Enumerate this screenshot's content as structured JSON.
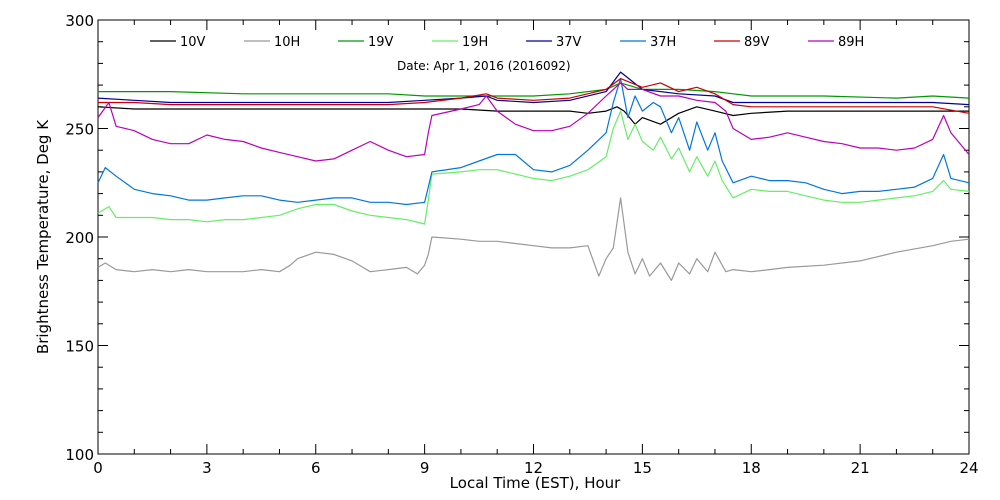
{
  "chart_data": {
    "type": "line",
    "title": "",
    "annotation": "Date: Apr  1, 2016 (2016092)",
    "xlabel": "Local Time (EST), Hour",
    "ylabel": "Brightness Temperature, Deg K",
    "xlim": [
      0,
      24
    ],
    "ylim": [
      100,
      300
    ],
    "xticks": [
      0,
      3,
      6,
      9,
      12,
      15,
      18,
      21,
      24
    ],
    "yticks": [
      100,
      150,
      200,
      250,
      300
    ],
    "grid": false,
    "legend_position": "top",
    "series": [
      {
        "name": "10V",
        "color": "#000000",
        "x": [
          0,
          1,
          2,
          3,
          4,
          5,
          6,
          7,
          8,
          9,
          10,
          11,
          12,
          12.5,
          13,
          13.5,
          14,
          14.3,
          14.5,
          14.8,
          15,
          15.5,
          16,
          16.5,
          17,
          17.5,
          18,
          19,
          20,
          21,
          22,
          23,
          24
        ],
        "y": [
          260,
          259,
          259,
          259,
          259,
          259,
          259,
          259,
          259,
          259,
          259,
          258,
          258,
          258,
          258,
          257,
          258,
          260,
          258,
          252,
          255,
          252,
          257,
          260,
          258,
          256,
          257,
          258,
          258,
          258,
          258,
          258,
          258
        ]
      },
      {
        "name": "10H",
        "color": "#999999",
        "x": [
          0,
          0.2,
          0.5,
          1,
          1.5,
          2,
          2.5,
          3,
          3.5,
          4,
          4.5,
          5,
          5.3,
          5.5,
          6,
          6.5,
          7,
          7.3,
          7.5,
          8,
          8.5,
          8.8,
          9,
          9.1,
          9.2,
          10,
          10.5,
          11,
          11.5,
          12,
          12.5,
          13,
          13.5,
          13.8,
          14,
          14.2,
          14.4,
          14.6,
          14.8,
          15,
          15.2,
          15.5,
          15.8,
          16,
          16.3,
          16.5,
          16.8,
          17,
          17.3,
          17.5,
          18,
          18.5,
          19,
          20,
          21,
          22,
          23,
          23.5,
          24
        ],
        "y": [
          186,
          188,
          185,
          184,
          185,
          184,
          185,
          184,
          184,
          184,
          185,
          184,
          187,
          190,
          193,
          192,
          189,
          186,
          184,
          185,
          186,
          183,
          187,
          192,
          200,
          199,
          198,
          198,
          197,
          196,
          195,
          195,
          196,
          182,
          190,
          195,
          218,
          193,
          183,
          190,
          182,
          188,
          180,
          188,
          183,
          190,
          184,
          193,
          184,
          185,
          184,
          185,
          186,
          187,
          189,
          193,
          196,
          198,
          199
        ]
      },
      {
        "name": "19V",
        "color": "#009900",
        "x": [
          0,
          2,
          4,
          6,
          8,
          9,
          10,
          11,
          12,
          13,
          14,
          14.4,
          15,
          16,
          17,
          17.5,
          18,
          20,
          22,
          23,
          24
        ],
        "y": [
          267,
          267,
          266,
          266,
          266,
          265,
          265,
          265,
          265,
          266,
          268,
          271,
          268,
          268,
          267,
          266,
          265,
          265,
          264,
          265,
          264
        ]
      },
      {
        "name": "19H",
        "color": "#66ee66",
        "x": [
          0,
          0.3,
          0.5,
          1,
          1.5,
          2,
          2.5,
          3,
          3.5,
          4,
          4.5,
          5,
          5.5,
          6,
          6.5,
          7,
          7.5,
          8,
          8.5,
          9,
          9.1,
          9.2,
          10,
          10.5,
          11,
          11.5,
          12,
          12.5,
          13,
          13.5,
          14,
          14.2,
          14.4,
          14.6,
          14.8,
          15,
          15.3,
          15.5,
          15.8,
          16,
          16.3,
          16.5,
          16.8,
          17,
          17.2,
          17.5,
          18,
          18.5,
          19,
          19.5,
          20,
          20.5,
          21,
          21.5,
          22,
          22.5,
          23,
          23.3,
          23.5,
          24
        ],
        "y": [
          211,
          214,
          209,
          209,
          209,
          208,
          208,
          207,
          208,
          208,
          209,
          210,
          213,
          215,
          215,
          212,
          210,
          209,
          208,
          206,
          217,
          229,
          230,
          231,
          231,
          229,
          227,
          226,
          228,
          231,
          237,
          250,
          258,
          245,
          252,
          244,
          240,
          246,
          236,
          241,
          230,
          237,
          228,
          235,
          226,
          218,
          222,
          221,
          221,
          219,
          217,
          216,
          216,
          217,
          218,
          219,
          221,
          226,
          222,
          221
        ]
      },
      {
        "name": "37V",
        "color": "#000099",
        "x": [
          0,
          1,
          2,
          3,
          4,
          5,
          6,
          7,
          8,
          9,
          10,
          10.7,
          11,
          12,
          13,
          14,
          14.4,
          15,
          16,
          17,
          17.5,
          18,
          19,
          20,
          21,
          22,
          23,
          24
        ],
        "y": [
          264,
          263,
          262,
          262,
          262,
          262,
          262,
          262,
          262,
          263,
          264,
          265,
          263,
          262,
          263,
          267,
          276,
          268,
          266,
          265,
          262,
          262,
          262,
          262,
          262,
          262,
          262,
          261
        ]
      },
      {
        "name": "37H",
        "color": "#0077dd",
        "x": [
          0,
          0.2,
          0.5,
          1,
          1.5,
          2,
          2.5,
          3,
          3.5,
          4,
          4.5,
          5,
          5.5,
          6,
          6.5,
          7,
          7.5,
          8,
          8.5,
          9,
          9.1,
          9.2,
          10,
          10.5,
          11,
          11.5,
          12,
          12.5,
          13,
          13.5,
          14,
          14.2,
          14.4,
          14.6,
          14.8,
          15,
          15.3,
          15.5,
          15.8,
          16,
          16.3,
          16.5,
          16.8,
          17,
          17.2,
          17.5,
          18,
          18.5,
          19,
          19.5,
          20,
          20.5,
          21,
          21.5,
          22,
          22.5,
          23,
          23.3,
          23.5,
          24
        ],
        "y": [
          225,
          232,
          228,
          222,
          220,
          219,
          217,
          217,
          218,
          219,
          219,
          217,
          216,
          217,
          218,
          218,
          216,
          216,
          215,
          216,
          223,
          230,
          232,
          235,
          238,
          238,
          231,
          230,
          233,
          240,
          248,
          262,
          273,
          255,
          265,
          258,
          262,
          260,
          248,
          255,
          240,
          253,
          240,
          248,
          235,
          225,
          228,
          226,
          226,
          225,
          222,
          220,
          221,
          221,
          222,
          223,
          227,
          238,
          227,
          225
        ]
      },
      {
        "name": "89V",
        "color": "#cc0000",
        "x": [
          0,
          1,
          2,
          3,
          4,
          5,
          6,
          7,
          8,
          9,
          10,
          10.7,
          11,
          12,
          13,
          14,
          14.4,
          15,
          15.5,
          16,
          16.5,
          17,
          17.5,
          18,
          19,
          20,
          21,
          22,
          23,
          24
        ],
        "y": [
          262,
          262,
          261,
          261,
          261,
          261,
          261,
          261,
          261,
          262,
          264,
          266,
          264,
          263,
          264,
          268,
          273,
          269,
          271,
          267,
          269,
          266,
          261,
          260,
          260,
          260,
          260,
          260,
          260,
          257
        ]
      },
      {
        "name": "89H",
        "color": "#bb00bb",
        "x": [
          0,
          0.3,
          0.5,
          1,
          1.5,
          2,
          2.5,
          3,
          3.5,
          4,
          4.5,
          5,
          5.5,
          6,
          6.5,
          7,
          7.5,
          8,
          8.5,
          9,
          9.1,
          9.2,
          10,
          10.5,
          10.7,
          11,
          11.5,
          12,
          12.5,
          13,
          13.5,
          14,
          14.2,
          14.4,
          14.6,
          15,
          15.5,
          16,
          16.5,
          17,
          17.3,
          17.5,
          18,
          18.5,
          19,
          19.5,
          20,
          20.5,
          21,
          21.5,
          22,
          22.5,
          23,
          23.3,
          23.5,
          24
        ],
        "y": [
          255,
          262,
          251,
          249,
          245,
          243,
          243,
          247,
          245,
          244,
          241,
          239,
          237,
          235,
          236,
          240,
          244,
          240,
          237,
          238,
          248,
          256,
          259,
          261,
          265,
          258,
          252,
          249,
          249,
          251,
          257,
          265,
          268,
          271,
          268,
          268,
          265,
          265,
          263,
          262,
          258,
          250,
          245,
          246,
          248,
          246,
          244,
          243,
          241,
          241,
          240,
          241,
          245,
          256,
          248,
          238
        ]
      }
    ]
  }
}
